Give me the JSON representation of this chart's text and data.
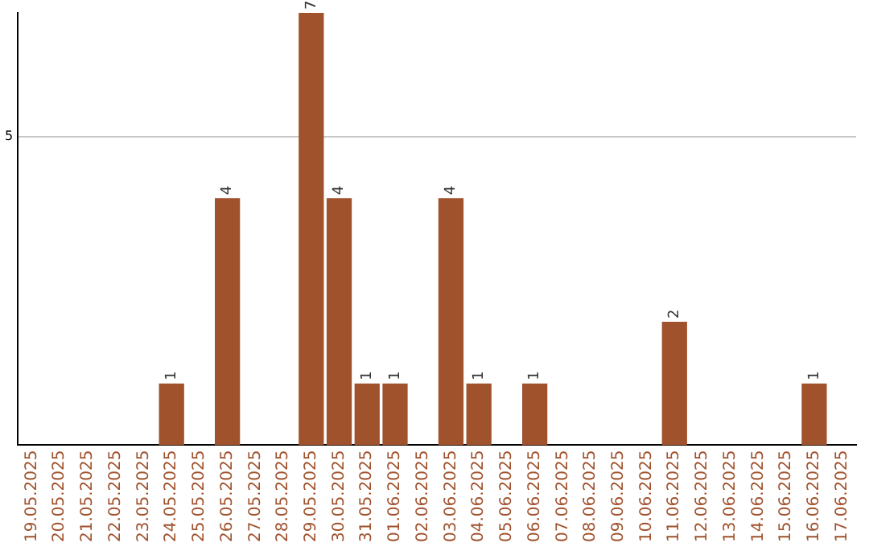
{
  "chart_data": {
    "type": "bar",
    "categories": [
      "19.05.2025",
      "20.05.2025",
      "21.05.2025",
      "22.05.2025",
      "23.05.2025",
      "24.05.2025",
      "25.05.2025",
      "26.05.2025",
      "27.05.2025",
      "28.05.2025",
      "29.05.2025",
      "30.05.2025",
      "31.05.2025",
      "01.06.2025",
      "02.06.2025",
      "03.06.2025",
      "04.06.2025",
      "05.06.2025",
      "06.06.2025",
      "07.06.2025",
      "08.06.2025",
      "09.06.2025",
      "10.06.2025",
      "11.06.2025",
      "12.06.2025",
      "13.06.2025",
      "14.06.2025",
      "15.06.2025",
      "16.06.2025",
      "17.06.2025"
    ],
    "values": [
      0,
      0,
      0,
      0,
      0,
      1,
      0,
      4,
      0,
      0,
      7,
      4,
      1,
      1,
      0,
      4,
      1,
      0,
      1,
      0,
      0,
      0,
      0,
      2,
      0,
      0,
      0,
      0,
      1,
      0
    ],
    "value_labels": [
      null,
      null,
      null,
      null,
      null,
      "1",
      null,
      "4",
      null,
      null,
      "7",
      "4",
      "1",
      "1",
      null,
      "4",
      "1",
      null,
      "1",
      null,
      null,
      null,
      null,
      "2",
      null,
      null,
      null,
      null,
      "1",
      null
    ],
    "color": "#a0522d",
    "ylim": [
      0,
      7
    ],
    "yticks": [
      5
    ],
    "grid": "y",
    "legend": false
  }
}
